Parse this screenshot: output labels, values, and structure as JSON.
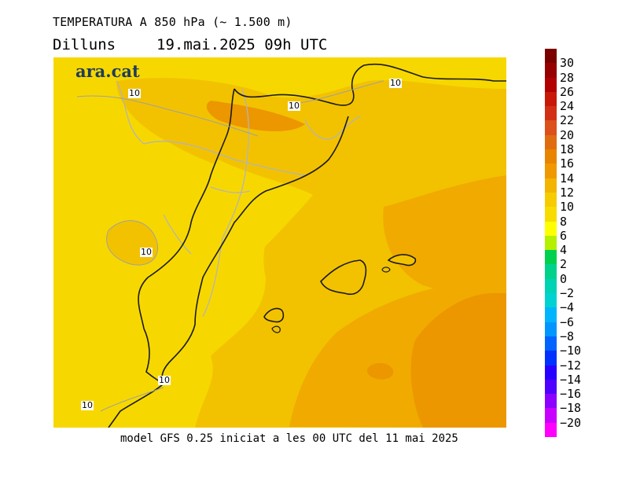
{
  "header": {
    "title": "TEMPERATURA A 850 hPa (~ 1.500 m)",
    "day": "Dilluns",
    "datetime": "19.mai.2025 09h UTC"
  },
  "logo": {
    "text": "ara.cat"
  },
  "footer": {
    "text": "model GFS 0.25 iniciat a les 00 UTC del 11 mai 2025"
  },
  "map": {
    "contour_labels": [
      "10",
      "10",
      "10",
      "10",
      "10",
      "10"
    ],
    "colors": {
      "t8_10": "#f6d800",
      "t10_12": "#f2c200",
      "t12_14": "#f0aa00",
      "t14_16": "#ec9600",
      "coastline": "#1a1a1a",
      "borders": "#b4b4b4"
    }
  },
  "colorbar": {
    "labels": [
      "30",
      "28",
      "26",
      "24",
      "22",
      "20",
      "18",
      "16",
      "14",
      "12",
      "10",
      "8",
      "6",
      "4",
      "2",
      "0",
      "−2",
      "−4",
      "−6",
      "−8",
      "−10",
      "−12",
      "−14",
      "−16",
      "−18",
      "−20"
    ],
    "colors": [
      "#7a0000",
      "#960000",
      "#b20000",
      "#c81808",
      "#d23014",
      "#dc501a",
      "#e06c10",
      "#e88400",
      "#f09800",
      "#f3b400",
      "#f6cc00",
      "#f8dc00",
      "#ffff00",
      "#b4f000",
      "#00d050",
      "#00d28c",
      "#00d2b4",
      "#00d2d2",
      "#00b4ff",
      "#0096ff",
      "#0064ff",
      "#0032ff",
      "#2800ff",
      "#5000ff",
      "#8c00ff",
      "#c800ff",
      "#ff00ff"
    ]
  }
}
